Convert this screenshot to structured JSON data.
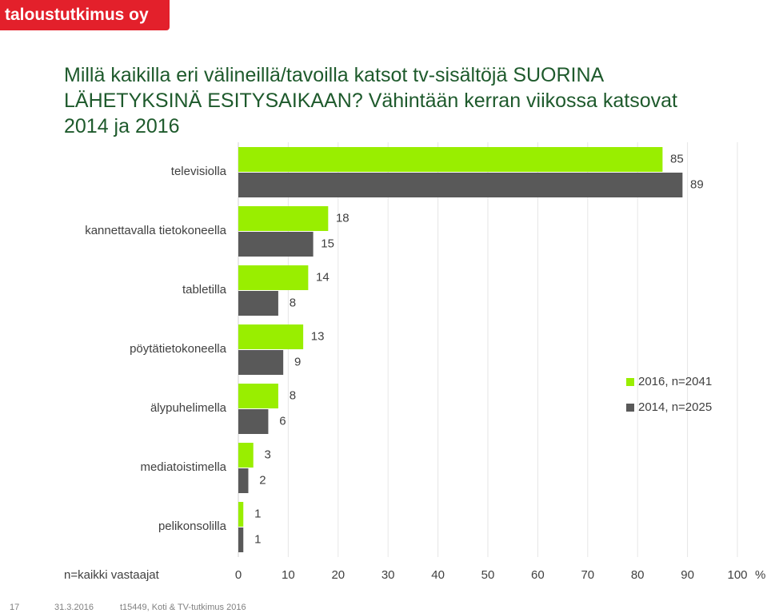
{
  "logo": "taloustutkimus oy",
  "footer": {
    "page": "17",
    "date": "31.3.2016",
    "source": "t15449, Koti & TV-tutkimus 2016"
  },
  "chart_data": {
    "type": "bar",
    "orientation": "horizontal",
    "title": "Millä kaikilla eri välineillä/tavoilla katsot tv-sisältöjä SUORINA LÄHETYKSINÄ ESITYSAIKAAN? Vähintään kerran viikossa katsovat 2014 ja 2016",
    "note": "n=kaikki vastaajat",
    "xlabel": "%",
    "categories": [
      "televisiolla",
      "kannettavalla tietokoneella",
      "tabletilla",
      "pöytätietokoneella",
      "älypuhelimella",
      "mediatoistimella",
      "pelikonsolilla"
    ],
    "series": [
      {
        "name": "2016, n=2041",
        "color": "#99ee00",
        "values": [
          85,
          18,
          14,
          13,
          8,
          3,
          1
        ]
      },
      {
        "name": "2014, n=2025",
        "color": "#595959",
        "values": [
          89,
          15,
          8,
          9,
          6,
          2,
          1
        ]
      }
    ],
    "xlim": [
      0,
      100
    ],
    "xticks": [
      0,
      10,
      20,
      30,
      40,
      50,
      60,
      70,
      80,
      90,
      100
    ],
    "grid": true,
    "legend": "right"
  }
}
